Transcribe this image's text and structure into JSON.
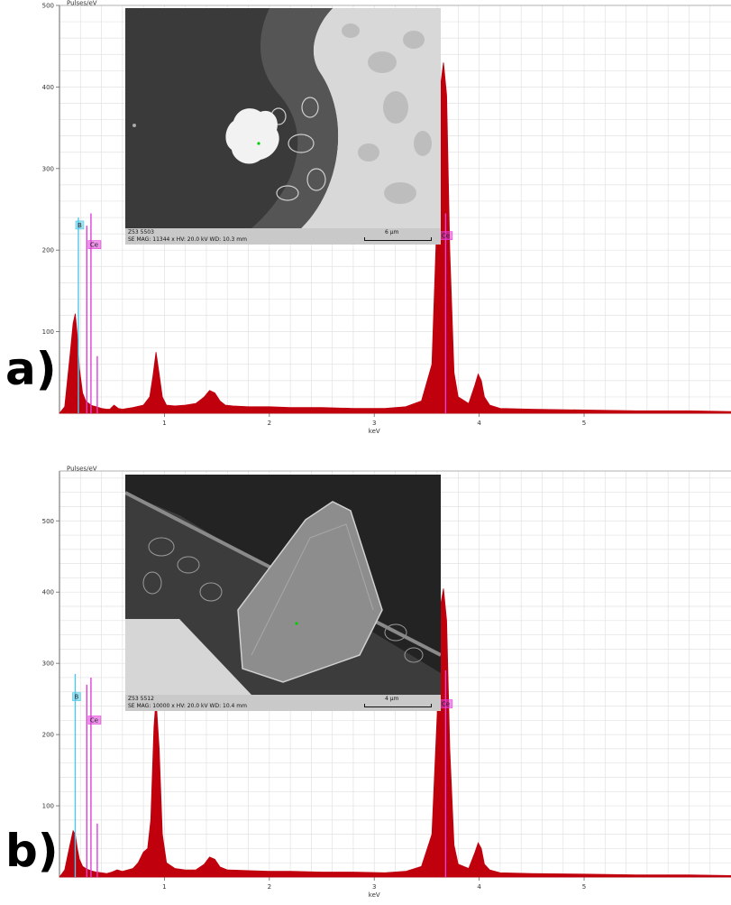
{
  "chart_data": [
    {
      "type": "area",
      "panel_label": "a)",
      "ylabel": "Pulses/eV",
      "xlabel": "keV",
      "xlim": [
        0,
        6.4
      ],
      "ylim": [
        0,
        500
      ],
      "y_ticks": [
        100,
        200,
        300,
        400,
        500
      ],
      "x_ticks": [
        1,
        2,
        3,
        4,
        5
      ],
      "grid": true,
      "series_color": "#c0000c",
      "series": [
        {
          "x": [
            0,
            0.05,
            0.1,
            0.13,
            0.15,
            0.17,
            0.19,
            0.22,
            0.25,
            0.28,
            0.3,
            0.32,
            0.35,
            0.4,
            0.45,
            0.48,
            0.52,
            0.56,
            0.6,
            0.7,
            0.8,
            0.86,
            0.89,
            0.92,
            0.95,
            0.98,
            1.02,
            1.1,
            1.2,
            1.3,
            1.38,
            1.43,
            1.48,
            1.53,
            1.58,
            1.65,
            1.8,
            2.0,
            2.2,
            2.5,
            2.8,
            3.1,
            3.3,
            3.45,
            3.55,
            3.6,
            3.63,
            3.66,
            3.69,
            3.72,
            3.76,
            3.8,
            3.9,
            3.96,
            3.99,
            4.02,
            4.05,
            4.1,
            4.2,
            4.5,
            5.0,
            5.5,
            6.0,
            6.4
          ],
          "y": [
            0,
            8,
            70,
            110,
            122,
            95,
            55,
            25,
            15,
            12,
            10,
            9,
            8,
            6,
            5,
            5,
            10,
            6,
            5,
            7,
            10,
            20,
            45,
            75,
            48,
            20,
            10,
            9,
            10,
            12,
            20,
            28,
            25,
            15,
            10,
            9,
            8,
            8,
            7,
            7,
            6,
            6,
            8,
            15,
            60,
            250,
            400,
            430,
            390,
            200,
            50,
            20,
            12,
            35,
            48,
            40,
            20,
            10,
            6,
            5,
            4,
            3,
            3,
            2
          ]
        }
      ],
      "element_tags": [
        {
          "label": "B",
          "keV": 0.18,
          "color": "#4fc8e8"
        },
        {
          "label": "Ce",
          "keV": 0.3,
          "color": "#e040d8"
        },
        {
          "label": "Ce",
          "keV": 3.65,
          "color": "#e040d8"
        }
      ],
      "marker_lines": [
        {
          "keV": 0.18,
          "height": 240,
          "color": "#4fc8e8"
        },
        {
          "keV": 0.26,
          "height": 230,
          "color": "#e040d8"
        },
        {
          "keV": 0.3,
          "height": 245,
          "color": "#e040d8"
        },
        {
          "keV": 0.36,
          "height": 70,
          "color": "#e040d8"
        },
        {
          "keV": 3.68,
          "height": 245,
          "color": "#e040d8"
        }
      ],
      "inset": {
        "line1": "Z53 5503",
        "line2": "SE  MAG: 11344 x  HV: 20.0 kV  WD: 10.3 mm",
        "scale_label": "6 µm"
      }
    },
    {
      "type": "area",
      "panel_label": "b)",
      "ylabel": "Pulses/eV",
      "xlabel": "keV",
      "xlim": [
        0,
        6.4
      ],
      "ylim": [
        0,
        570
      ],
      "y_ticks": [
        100,
        200,
        300,
        400,
        500
      ],
      "x_ticks": [
        1,
        2,
        3,
        4,
        5
      ],
      "grid": true,
      "series_color": "#c0000c",
      "series": [
        {
          "x": [
            0,
            0.05,
            0.1,
            0.13,
            0.15,
            0.17,
            0.19,
            0.22,
            0.25,
            0.28,
            0.3,
            0.32,
            0.35,
            0.4,
            0.45,
            0.5,
            0.55,
            0.6,
            0.7,
            0.75,
            0.8,
            0.84,
            0.87,
            0.9,
            0.92,
            0.95,
            0.98,
            1.02,
            1.1,
            1.2,
            1.3,
            1.38,
            1.43,
            1.48,
            1.53,
            1.6,
            1.8,
            2.0,
            2.2,
            2.5,
            2.8,
            3.1,
            3.3,
            3.45,
            3.55,
            3.6,
            3.63,
            3.66,
            3.69,
            3.72,
            3.76,
            3.8,
            3.9,
            3.96,
            3.99,
            4.02,
            4.05,
            4.1,
            4.2,
            4.5,
            5.0,
            5.5,
            6.0,
            6.4
          ],
          "y": [
            0,
            10,
            45,
            65,
            60,
            40,
            25,
            15,
            12,
            10,
            9,
            8,
            7,
            6,
            5,
            7,
            10,
            8,
            12,
            20,
            35,
            40,
            80,
            210,
            250,
            180,
            60,
            20,
            12,
            10,
            10,
            18,
            28,
            25,
            14,
            10,
            9,
            8,
            8,
            7,
            7,
            6,
            8,
            15,
            60,
            230,
            380,
            405,
            360,
            180,
            45,
            18,
            12,
            35,
            48,
            40,
            18,
            10,
            6,
            5,
            4,
            3,
            3,
            2
          ]
        }
      ],
      "element_tags": [
        {
          "label": "B",
          "keV": 0.15,
          "color": "#4fc8e8"
        },
        {
          "label": "Ce",
          "keV": 0.3,
          "color": "#e040d8"
        },
        {
          "label": "Ce",
          "keV": 3.65,
          "color": "#e040d8"
        }
      ],
      "marker_lines": [
        {
          "keV": 0.15,
          "height": 285,
          "color": "#4fc8e8"
        },
        {
          "keV": 0.26,
          "height": 270,
          "color": "#e040d8"
        },
        {
          "keV": 0.3,
          "height": 280,
          "color": "#e040d8"
        },
        {
          "keV": 0.36,
          "height": 75,
          "color": "#e040d8"
        },
        {
          "keV": 3.68,
          "height": 290,
          "color": "#e040d8"
        }
      ],
      "inset": {
        "line1": "Z53 5512",
        "line2": "SE  MAG: 10000 x  HV: 20.0 kV  WD: 10.4 mm",
        "scale_label": "4 µm"
      }
    }
  ]
}
